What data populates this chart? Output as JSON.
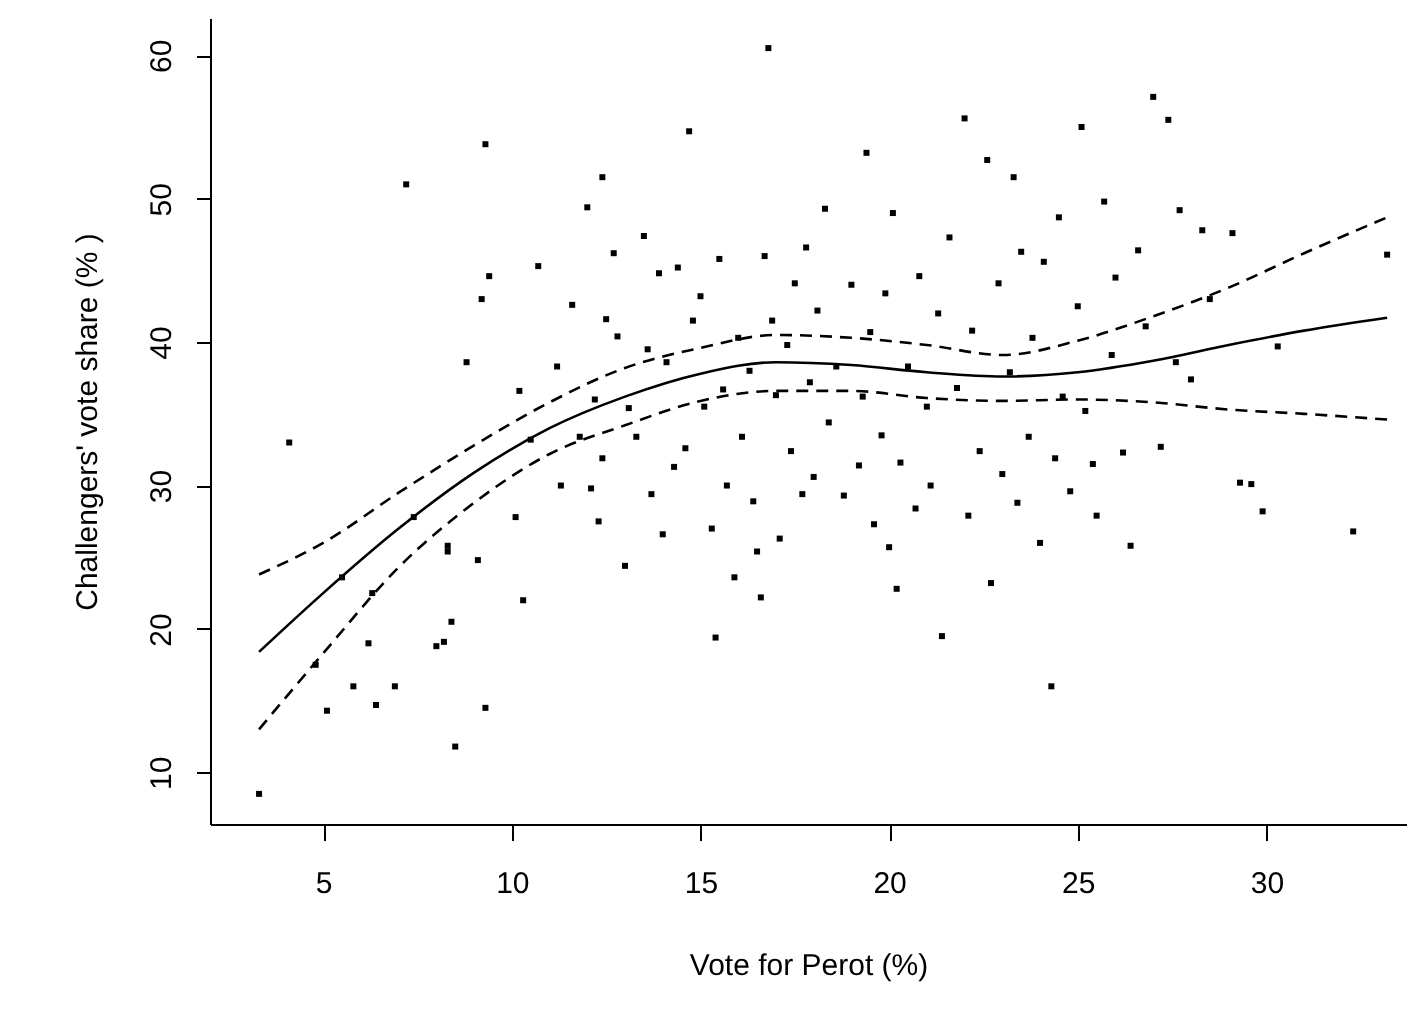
{
  "chart_data": {
    "type": "scatter",
    "xlabel": "Vote for Perot (%)",
    "ylabel": "Challengers' vote share (% )",
    "xlim": [
      2.0,
      33.7
    ],
    "ylim": [
      6.4,
      62.6
    ],
    "xticks": [
      5,
      10,
      15,
      20,
      25,
      30
    ],
    "yticks": [
      10,
      20,
      30,
      40,
      50,
      60
    ],
    "grid": false,
    "series": [
      {
        "marker": "square",
        "color": "#000000",
        "x": [
          3.3,
          4.1,
          4.8,
          5.1,
          5.5,
          5.8,
          6.2,
          6.3,
          6.4,
          6.9,
          7.2,
          7.4,
          8.0,
          8.2,
          8.3,
          8.3,
          8.4,
          8.5,
          8.8,
          9.1,
          9.2,
          9.3,
          9.3,
          9.4,
          10.1,
          10.2,
          10.3,
          10.5,
          10.7,
          11.2,
          11.3,
          11.6,
          11.8,
          12.0,
          12.1,
          12.2,
          12.3,
          12.4,
          12.4,
          12.5,
          12.7,
          12.8,
          13.0,
          13.1,
          13.3,
          13.5,
          13.6,
          13.7,
          13.9,
          14.0,
          14.1,
          14.3,
          14.4,
          14.6,
          14.7,
          14.8,
          15.0,
          15.1,
          15.3,
          15.4,
          15.5,
          15.6,
          15.7,
          15.9,
          16.0,
          16.1,
          16.3,
          16.4,
          16.5,
          16.6,
          16.7,
          16.8,
          16.9,
          17.0,
          17.1,
          17.3,
          17.4,
          17.5,
          17.7,
          17.8,
          17.9,
          18.0,
          18.1,
          18.3,
          18.4,
          18.6,
          18.8,
          19.0,
          19.2,
          19.3,
          19.4,
          19.5,
          19.6,
          19.8,
          19.9,
          20.0,
          20.1,
          20.2,
          20.3,
          20.5,
          20.7,
          20.8,
          21.0,
          21.1,
          21.3,
          21.4,
          21.6,
          21.8,
          22.0,
          22.1,
          22.2,
          22.4,
          22.6,
          22.7,
          22.9,
          23.0,
          23.2,
          23.3,
          23.4,
          23.5,
          23.7,
          23.8,
          24.0,
          24.1,
          24.3,
          24.4,
          24.5,
          24.6,
          24.8,
          25.0,
          25.1,
          25.2,
          25.4,
          25.5,
          25.7,
          25.9,
          26.0,
          26.2,
          26.4,
          26.6,
          26.8,
          27.0,
          27.2,
          27.4,
          27.6,
          27.7,
          28.0,
          28.3,
          28.5,
          29.1,
          29.3,
          29.6,
          29.9,
          30.3,
          32.3,
          33.2
        ],
        "values": [
          8.5,
          33,
          17.5,
          14.3,
          23.6,
          16,
          19,
          22.5,
          14.7,
          16,
          51,
          27.8,
          18.8,
          19.1,
          25.8,
          25.4,
          20.5,
          11.8,
          38.6,
          24.8,
          43,
          53.8,
          14.5,
          44.6,
          27.8,
          36.6,
          22,
          33.2,
          45.3,
          38.3,
          30,
          42.6,
          33.4,
          49.4,
          29.8,
          36,
          27.5,
          31.9,
          51.5,
          41.6,
          46.2,
          40.4,
          24.4,
          35.4,
          33.4,
          47.4,
          39.5,
          29.4,
          44.8,
          26.6,
          38.6,
          31.3,
          45.2,
          32.6,
          54.7,
          41.5,
          43.2,
          35.5,
          27.0,
          19.4,
          45.8,
          36.7,
          30,
          23.6,
          40.3,
          33.4,
          38.0,
          28.9,
          25.4,
          22.2,
          46.0,
          60.5,
          41.5,
          36.3,
          26.3,
          39.8,
          32.4,
          44.1,
          29.4,
          46.6,
          37.2,
          30.6,
          42.2,
          49.3,
          34.4,
          38.3,
          29.3,
          44.0,
          31.4,
          36.2,
          53.2,
          40.7,
          27.3,
          33.5,
          43.4,
          25.7,
          49.0,
          22.8,
          31.6,
          38.3,
          28.4,
          44.6,
          35.5,
          30.0,
          42.0,
          19.5,
          47.3,
          36.8,
          55.6,
          27.9,
          40.8,
          32.4,
          52.7,
          23.2,
          44.1,
          30.8,
          37.9,
          51.5,
          28.8,
          46.3,
          33.4,
          40.3,
          26.0,
          45.6,
          16.0,
          31.9,
          48.7,
          36.2,
          29.6,
          42.5,
          55.0,
          35.2,
          31.5,
          27.9,
          49.8,
          39.1,
          44.5,
          32.3,
          25.8,
          46.4,
          41.1,
          57.1,
          32.7,
          55.5,
          38.6,
          49.2,
          37.4,
          47.8,
          43.0,
          47.6,
          30.2,
          30.1,
          28.2,
          39.7,
          26.8,
          46.1
        ]
      },
      {
        "type": "line",
        "line_style": "solid",
        "color": "#000000",
        "x": [
          3.3,
          5,
          7,
          9,
          11,
          13,
          15,
          17,
          19,
          21,
          23,
          25,
          27,
          29,
          31,
          33.2
        ],
        "values": [
          18.4,
          22.5,
          27,
          30.9,
          34,
          36.2,
          37.8,
          38.6,
          38.4,
          37.9,
          37.6,
          37.9,
          38.7,
          39.8,
          40.8,
          41.7
        ]
      },
      {
        "type": "line",
        "line_style": "dashed",
        "color": "#000000",
        "x": [
          3.3,
          5,
          7,
          9,
          11,
          13,
          15,
          17,
          19,
          21,
          23,
          25,
          27,
          29,
          31,
          33.2
        ],
        "values": [
          23.8,
          26,
          29.5,
          32.8,
          35.8,
          38.2,
          39.6,
          40.5,
          40.3,
          39.8,
          39.1,
          40.1,
          41.8,
          43.8,
          46.2,
          48.7
        ]
      },
      {
        "type": "line",
        "line_style": "dashed",
        "color": "#000000",
        "x": [
          3.3,
          5,
          7,
          9,
          11,
          13,
          15,
          17,
          19,
          21,
          23,
          25,
          27,
          29,
          31,
          33.2
        ],
        "values": [
          13,
          18.3,
          24.3,
          28.8,
          32.2,
          34.2,
          35.9,
          36.6,
          36.6,
          36.1,
          35.9,
          36.0,
          35.8,
          35.3,
          35,
          34.6
        ]
      }
    ]
  }
}
